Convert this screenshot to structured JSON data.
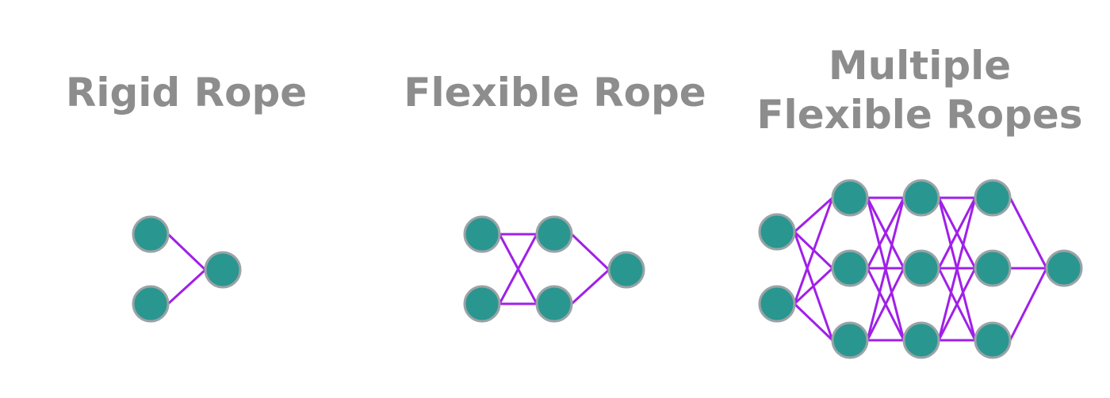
{
  "panels": [
    {
      "title_lines": [
        "Rigid Rope"
      ]
    },
    {
      "title_lines": [
        "Flexible Rope"
      ]
    },
    {
      "title_lines": [
        "Multiple",
        "Flexible Ropes"
      ]
    }
  ],
  "colors": {
    "title": "#8d8d8d",
    "node_fill": "#2a9690",
    "node_stroke": "#9aa3a6",
    "edge": "#a020e8"
  }
}
